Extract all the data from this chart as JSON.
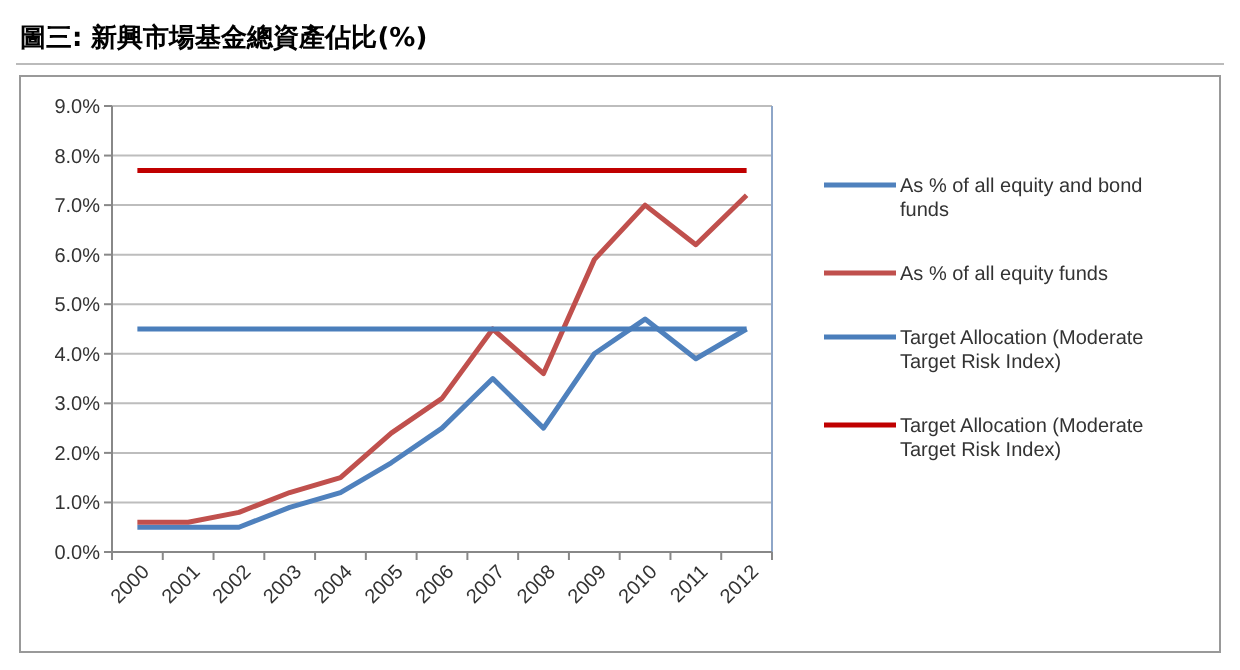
{
  "chart_data": {
    "type": "line",
    "title": "圖三: 新興市場基金總資產佔比(%)",
    "categories": [
      "2000",
      "2001",
      "2002",
      "2003",
      "2004",
      "2005",
      "2006",
      "2007",
      "2008",
      "2009",
      "2010",
      "2011",
      "2012"
    ],
    "series": [
      {
        "name": "As % of all equity and bond funds",
        "color": "#4f81bd",
        "values": [
          0.5,
          0.5,
          0.5,
          0.9,
          1.2,
          1.8,
          2.5,
          3.5,
          2.5,
          4.0,
          4.7,
          3.9,
          4.5
        ]
      },
      {
        "name": "As % of all equity funds",
        "color": "#c0504d",
        "values": [
          0.6,
          0.6,
          0.8,
          1.2,
          1.5,
          2.4,
          3.1,
          4.5,
          3.6,
          5.9,
          7.0,
          6.2,
          7.2
        ]
      },
      {
        "name": "Target Allocation (Moderate Target Risk Index)",
        "color": "#4a7ebb",
        "values": [
          4.5,
          4.5,
          4.5,
          4.5,
          4.5,
          4.5,
          4.5,
          4.5,
          4.5,
          4.5,
          4.5,
          4.5,
          4.5
        ]
      },
      {
        "name": "Target Allocation (Moderate Target Risk Index)",
        "color": "#c00000",
        "values": [
          7.7,
          7.7,
          7.7,
          7.7,
          7.7,
          7.7,
          7.7,
          7.7,
          7.7,
          7.7,
          7.7,
          7.7,
          7.7
        ]
      }
    ],
    "ylim": [
      0,
      9
    ],
    "yticks": [
      {
        "value": 0,
        "label": "0.0%"
      },
      {
        "value": 1,
        "label": "1.0%"
      },
      {
        "value": 2,
        "label": "2.0%"
      },
      {
        "value": 3,
        "label": "3.0%"
      },
      {
        "value": 4,
        "label": "4.0%"
      },
      {
        "value": 5,
        "label": "5.0%"
      },
      {
        "value": 6,
        "label": "6.0%"
      },
      {
        "value": 7,
        "label": "7.0%"
      },
      {
        "value": 8,
        "label": "8.0%"
      },
      {
        "value": 9,
        "label": "9.0%"
      }
    ],
    "grid": "y",
    "legend": "right",
    "marker": "none",
    "line_style": "solid"
  }
}
